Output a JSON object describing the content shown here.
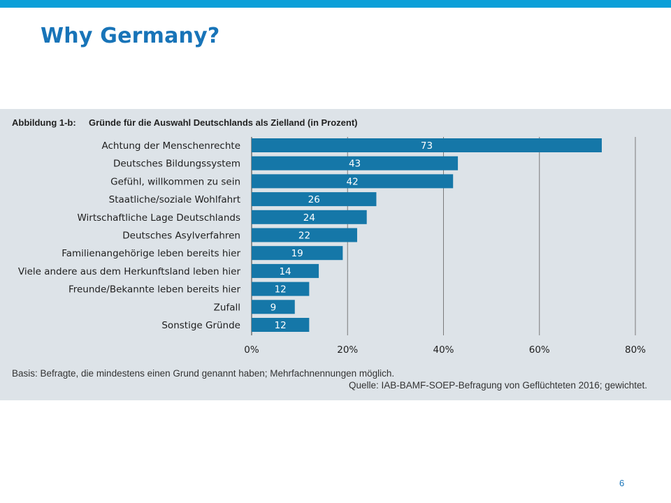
{
  "slide": {
    "title": "Why Germany?",
    "page_number": "6"
  },
  "figure": {
    "caption_number": "Abbildung 1-b:",
    "caption_title": "Gründe für die Auswahl Deutschlands als Zielland (in Prozent)",
    "note": "Basis: Befragte, die mindestens einen Grund genannt haben; Mehrfachnennungen möglich.",
    "source": "Quelle: IAB-BAMF-SOEP-Befragung von Geflüchteten 2016; gewichtet."
  },
  "colors": {
    "bar": "#1577a8",
    "figure_background": "#dde3e8",
    "title": "#1874b8",
    "top_bar": "#0a9fd8",
    "grid": "#7a7a7a"
  },
  "chart_data": {
    "type": "bar",
    "orientation": "horizontal",
    "title": "Gründe für die Auswahl Deutschlands als Zielland (in Prozent)",
    "categories": [
      "Achtung der Menschenrechte",
      "Deutsches Bildungssystem",
      "Gefühl, willkommen zu sein",
      "Staatliche/soziale Wohlfahrt",
      "Wirtschaftliche Lage Deutschlands",
      "Deutsches Asylverfahren",
      "Familienangehörige leben bereits hier",
      "Viele andere aus dem Herkunftsland leben hier",
      "Freunde/Bekannte leben bereits hier",
      "Zufall",
      "Sonstige Gründe"
    ],
    "values": [
      73,
      43,
      42,
      26,
      24,
      22,
      19,
      14,
      12,
      9,
      12
    ],
    "xlim": [
      0,
      80
    ],
    "xticks": [
      0,
      20,
      40,
      60,
      80
    ],
    "xtick_labels": [
      "0%",
      "20%",
      "40%",
      "60%",
      "80%"
    ],
    "grid": true,
    "data_labels": true
  }
}
